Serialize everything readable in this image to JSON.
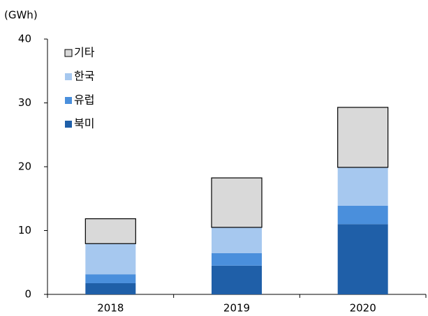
{
  "chart_data": {
    "type": "stacked_bar",
    "y_label": "(GWh)",
    "categories": [
      "2018",
      "2019",
      "2020"
    ],
    "series": [
      {
        "name": "북미",
        "color": "#1f5fa8",
        "values": [
          1.75,
          4.5,
          11.0
        ]
      },
      {
        "name": "유럽",
        "color": "#4a8fdc",
        "values": [
          1.4,
          1.95,
          2.9
        ]
      },
      {
        "name": "한국",
        "color": "#a6c8ef",
        "values": [
          4.8,
          4.05,
          6.0
        ]
      },
      {
        "name": "기타",
        "color": "#d9d9d9",
        "values": [
          3.9,
          7.75,
          9.4
        ]
      }
    ],
    "ylim": [
      0,
      40
    ],
    "yticks": [
      0,
      10,
      20,
      30,
      40
    ]
  }
}
